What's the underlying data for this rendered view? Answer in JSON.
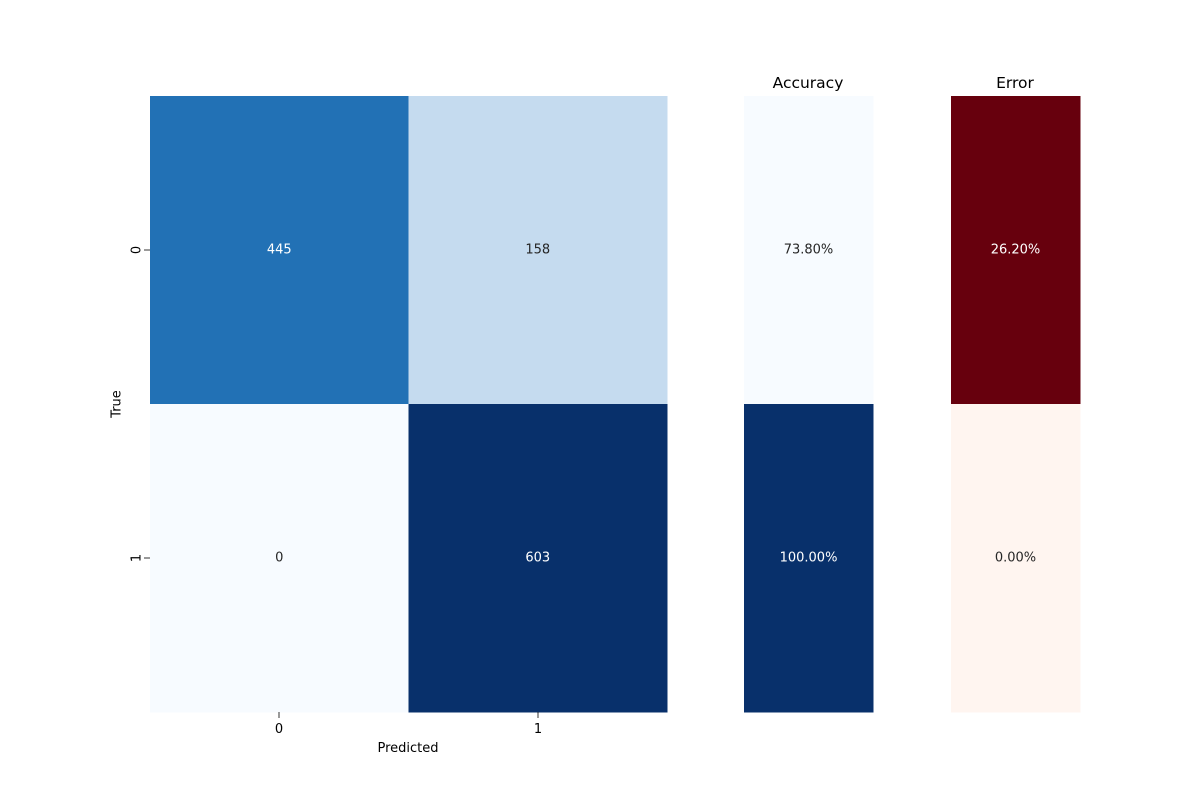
{
  "chart_data": [
    {
      "type": "heatmap",
      "title": "",
      "xlabel": "Predicted",
      "ylabel": "True",
      "x_tick_labels": [
        "0",
        "1"
      ],
      "y_tick_labels": [
        "0",
        "1"
      ],
      "colormap": "Blues",
      "grid": false,
      "colorbar": false,
      "values": [
        [
          445,
          158
        ],
        [
          0,
          603
        ]
      ],
      "cell_labels": [
        [
          "445",
          "158"
        ],
        [
          "0",
          "603"
        ]
      ]
    },
    {
      "type": "heatmap",
      "title": "Accuracy",
      "colormap": "Blues",
      "grid": false,
      "colorbar": false,
      "values": [
        [
          73.8
        ],
        [
          100.0
        ]
      ],
      "cell_labels": [
        [
          "73.80%"
        ],
        [
          "100.00%"
        ]
      ]
    },
    {
      "type": "heatmap",
      "title": "Error",
      "colormap": "Reds",
      "grid": false,
      "colorbar": false,
      "values": [
        [
          26.2
        ],
        [
          0.0
        ]
      ],
      "cell_labels": [
        [
          "26.20%"
        ],
        [
          "0.00%"
        ]
      ]
    }
  ],
  "colors": {
    "blues_ramp": [
      "#f7fbff",
      "#c6dbef",
      "#2171b5",
      "#08306b"
    ],
    "reds_ramp": [
      "#fff5f0",
      "#67000d"
    ],
    "text_on_dark": "#ffffff",
    "text_on_light": "#262626"
  }
}
